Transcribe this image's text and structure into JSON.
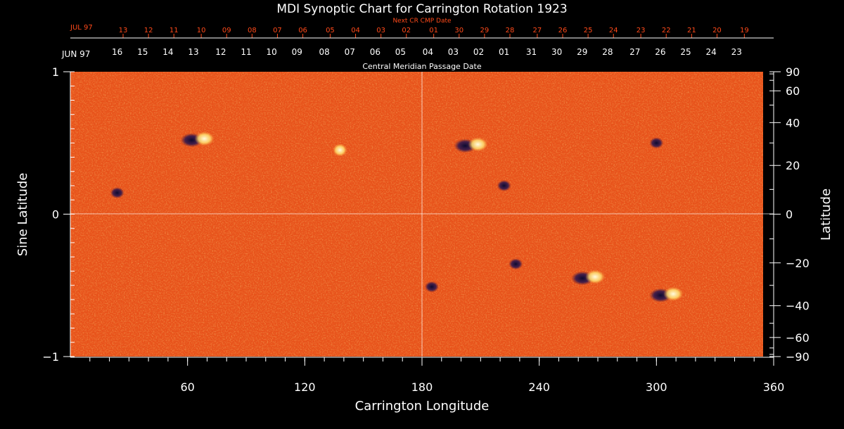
{
  "chart_data": {
    "type": "heatmap",
    "title": "MDI Synoptic Chart for Carrington Rotation 1923",
    "xlabel": "Carrington Longitude",
    "ylabel_left": "Sine Latitude",
    "ylabel_right": "Latitude",
    "xlim": [
      0,
      360
    ],
    "ylim": [
      -1,
      1
    ],
    "x_ticks": [
      60,
      120,
      180,
      240,
      300,
      360
    ],
    "y_ticks_left": [
      {
        "value": 1,
        "label": "1"
      },
      {
        "value": 0,
        "label": "0"
      },
      {
        "value": -1,
        "label": "−1"
      }
    ],
    "y_ticks_right": [
      90,
      60,
      40,
      20,
      0,
      -20,
      -40,
      -60,
      -90
    ],
    "cmp_axis_label": "Central Meridian Passage Date",
    "cmp_month_label": "JUN 97",
    "cmp_dates": [
      {
        "lon": 24,
        "day": "16"
      },
      {
        "lon": 37,
        "day": "15"
      },
      {
        "lon": 50,
        "day": "14"
      },
      {
        "lon": 63,
        "day": "13"
      },
      {
        "lon": 77,
        "day": "12"
      },
      {
        "lon": 90,
        "day": "11"
      },
      {
        "lon": 103,
        "day": "10"
      },
      {
        "lon": 116,
        "day": "09"
      },
      {
        "lon": 130,
        "day": "08"
      },
      {
        "lon": 143,
        "day": "07"
      },
      {
        "lon": 156,
        "day": "06"
      },
      {
        "lon": 169,
        "day": "05"
      },
      {
        "lon": 183,
        "day": "04"
      },
      {
        "lon": 196,
        "day": "03"
      },
      {
        "lon": 209,
        "day": "02"
      },
      {
        "lon": 222,
        "day": "01"
      },
      {
        "lon": 236,
        "day": "31"
      },
      {
        "lon": 249,
        "day": "30"
      },
      {
        "lon": 262,
        "day": "29"
      },
      {
        "lon": 275,
        "day": "28"
      },
      {
        "lon": 289,
        "day": "27"
      },
      {
        "lon": 302,
        "day": "26"
      },
      {
        "lon": 315,
        "day": "25"
      },
      {
        "lon": 328,
        "day": "24"
      },
      {
        "lon": 341,
        "day": "23"
      }
    ],
    "next_cr_label": "Next CR CMP Date",
    "next_cr_month_label": "JUL 97",
    "next_cr_dates": [
      {
        "lon": 27,
        "day": "13"
      },
      {
        "lon": 40,
        "day": "12"
      },
      {
        "lon": 53,
        "day": "11"
      },
      {
        "lon": 67,
        "day": "10"
      },
      {
        "lon": 80,
        "day": "09"
      },
      {
        "lon": 93,
        "day": "08"
      },
      {
        "lon": 106,
        "day": "07"
      },
      {
        "lon": 119,
        "day": "06"
      },
      {
        "lon": 133,
        "day": "05"
      },
      {
        "lon": 146,
        "day": "04"
      },
      {
        "lon": 159,
        "day": "03"
      },
      {
        "lon": 172,
        "day": "02"
      },
      {
        "lon": 186,
        "day": "01"
      },
      {
        "lon": 199,
        "day": "30"
      },
      {
        "lon": 212,
        "day": "29"
      },
      {
        "lon": 225,
        "day": "28"
      },
      {
        "lon": 239,
        "day": "27"
      },
      {
        "lon": 252,
        "day": "26"
      },
      {
        "lon": 265,
        "day": "25"
      },
      {
        "lon": 278,
        "day": "24"
      },
      {
        "lon": 292,
        "day": "23"
      },
      {
        "lon": 305,
        "day": "22"
      },
      {
        "lon": 318,
        "day": "21"
      },
      {
        "lon": 331,
        "day": "20"
      },
      {
        "lon": 345,
        "day": "19"
      }
    ],
    "active_regions": [
      {
        "lon": 65,
        "sinlat": 0.52,
        "polarity": "mixed"
      },
      {
        "lon": 24,
        "sinlat": 0.15,
        "polarity": "negative"
      },
      {
        "lon": 138,
        "sinlat": 0.45,
        "polarity": "positive"
      },
      {
        "lon": 205,
        "sinlat": 0.48,
        "polarity": "mixed"
      },
      {
        "lon": 222,
        "sinlat": 0.2,
        "polarity": "negative"
      },
      {
        "lon": 300,
        "sinlat": 0.5,
        "polarity": "negative"
      },
      {
        "lon": 185,
        "sinlat": -0.51,
        "polarity": "negative"
      },
      {
        "lon": 228,
        "sinlat": -0.35,
        "polarity": "negative"
      },
      {
        "lon": 265,
        "sinlat": -0.45,
        "polarity": "mixed"
      },
      {
        "lon": 305,
        "sinlat": -0.57,
        "polarity": "mixed"
      }
    ],
    "colors": {
      "background_field": "#e8521a",
      "positive": "#fff6c0",
      "negative": "#1a1340",
      "grid": "#ffffff",
      "next_cr_text": "#ff4a1a",
      "axis_text": "#ffffff"
    },
    "grid": "on"
  }
}
